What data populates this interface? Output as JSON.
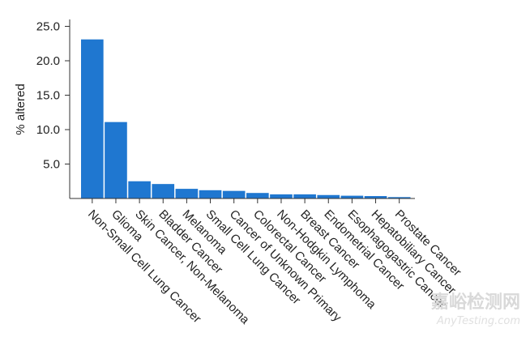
{
  "chart_data": {
    "type": "bar",
    "categories": [
      "Non-Small Cell Lung Cancer",
      "Glioma",
      "Skin Cancer, Non-Melanoma",
      "Bladder Cancer",
      "Melanoma",
      "Small Cell Lung Cancer",
      "Cancer of Unknown Primary",
      "Colorectal Cancer",
      "Non-Hodgkin Lymphoma",
      "Breast Cancer",
      "Endometrial Cancer",
      "Esophagogastric Cancer",
      "Hepatobiliary Cancer",
      "Prostate Cancer"
    ],
    "values": [
      23.1,
      11.1,
      2.5,
      2.1,
      1.4,
      1.2,
      1.1,
      0.8,
      0.6,
      0.6,
      0.5,
      0.4,
      0.35,
      0.2
    ],
    "title": "",
    "xlabel": "",
    "ylabel": "% altered",
    "yticks": [
      "5.0",
      "10.0",
      "15.0",
      "20.0",
      "25.0"
    ],
    "ylim": [
      0,
      26
    ],
    "bar_color": "#1f77d0",
    "grid": false,
    "legend": "none"
  },
  "watermark": {
    "main": "嘉峪检测网",
    "sub": "AnyTesting.com"
  }
}
